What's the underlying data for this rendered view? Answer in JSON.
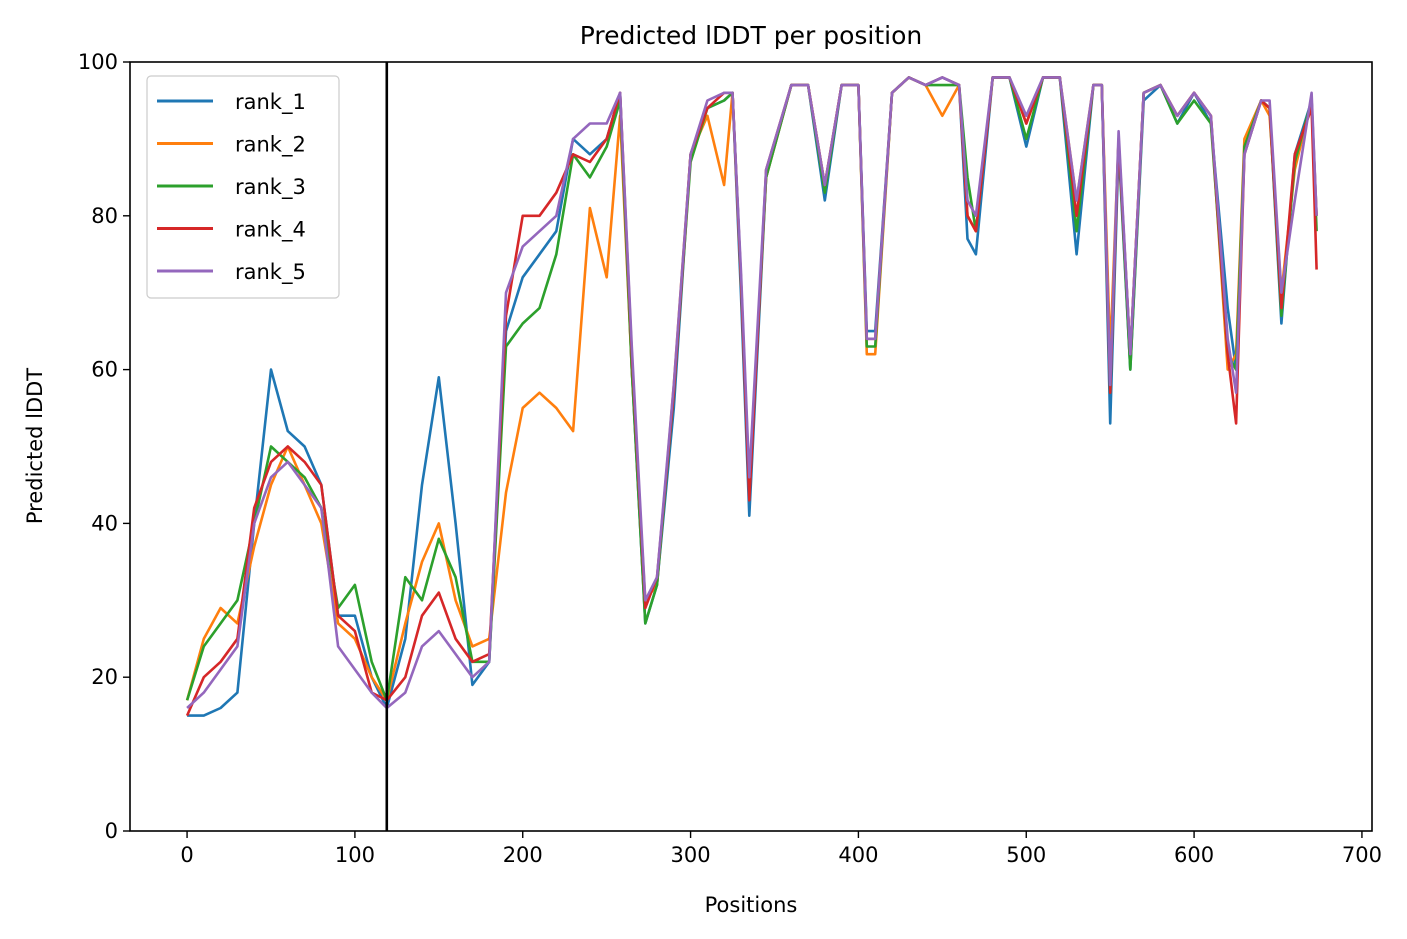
{
  "chart_data": {
    "type": "line",
    "title": "Predicted lDDT per position",
    "xlabel": "Positions",
    "ylabel": "Predicted lDDT",
    "xlim": [
      -34,
      706
    ],
    "ylim": [
      0,
      100
    ],
    "xticks": [
      0,
      100,
      200,
      300,
      400,
      500,
      600,
      700
    ],
    "yticks": [
      0,
      20,
      40,
      60,
      80,
      100
    ],
    "grid": false,
    "legend_position": "top-left",
    "vline_x": 119,
    "vline_color": "#000000",
    "x": [
      0,
      10,
      20,
      30,
      40,
      50,
      60,
      70,
      80,
      90,
      100,
      110,
      119,
      130,
      140,
      150,
      160,
      170,
      180,
      190,
      200,
      210,
      220,
      230,
      240,
      250,
      258,
      265,
      273,
      280,
      290,
      300,
      310,
      320,
      325,
      330,
      335,
      345,
      360,
      370,
      380,
      390,
      400,
      405,
      410,
      420,
      430,
      440,
      450,
      460,
      465,
      470,
      480,
      490,
      500,
      510,
      520,
      530,
      540,
      545,
      550,
      555,
      562,
      570,
      580,
      590,
      600,
      610,
      620,
      625,
      630,
      640,
      645,
      652,
      660,
      670,
      673
    ],
    "series": [
      {
        "name": "rank_1",
        "color": "#1f77b4",
        "values": [
          15,
          15,
          16,
          18,
          40,
          60,
          52,
          50,
          45,
          28,
          28,
          20,
          16,
          25,
          45,
          59,
          40,
          19,
          22,
          65,
          72,
          75,
          78,
          90,
          88,
          90,
          96,
          60,
          27,
          32,
          55,
          88,
          94,
          95,
          96,
          70,
          41,
          85,
          97,
          97,
          82,
          97,
          97,
          65,
          65,
          96,
          98,
          97,
          98,
          97,
          77,
          75,
          98,
          98,
          89,
          98,
          98,
          75,
          97,
          97,
          53,
          89,
          60,
          95,
          97,
          92,
          96,
          92,
          68,
          60,
          88,
          95,
          94,
          66,
          88,
          95,
          80
        ]
      },
      {
        "name": "rank_2",
        "color": "#ff7f0e",
        "values": [
          17,
          25,
          29,
          27,
          37,
          45,
          50,
          45,
          40,
          27,
          25,
          20,
          17,
          27,
          35,
          40,
          30,
          24,
          25,
          44,
          55,
          57,
          55,
          52,
          81,
          72,
          93,
          60,
          30,
          32,
          58,
          88,
          93,
          84,
          96,
          72,
          45,
          85,
          97,
          97,
          84,
          97,
          97,
          62,
          62,
          96,
          98,
          97,
          93,
          97,
          80,
          78,
          98,
          98,
          92,
          98,
          98,
          82,
          97,
          97,
          62,
          90,
          62,
          96,
          97,
          93,
          96,
          93,
          60,
          62,
          90,
          95,
          93,
          70,
          86,
          95,
          80
        ]
      },
      {
        "name": "rank_3",
        "color": "#2ca02c",
        "values": [
          17,
          24,
          27,
          30,
          40,
          50,
          48,
          46,
          42,
          29,
          32,
          22,
          17,
          33,
          30,
          38,
          33,
          22,
          22,
          63,
          66,
          68,
          75,
          88,
          85,
          89,
          95,
          60,
          27,
          32,
          57,
          87,
          94,
          95,
          96,
          72,
          44,
          85,
          97,
          97,
          83,
          97,
          97,
          63,
          63,
          96,
          98,
          97,
          97,
          97,
          85,
          78,
          98,
          98,
          90,
          98,
          98,
          78,
          97,
          97,
          57,
          90,
          60,
          96,
          97,
          92,
          95,
          92,
          62,
          60,
          89,
          95,
          94,
          67,
          87,
          95,
          78
        ]
      },
      {
        "name": "rank_4",
        "color": "#d62728",
        "values": [
          15,
          20,
          22,
          25,
          42,
          48,
          50,
          48,
          45,
          28,
          26,
          18,
          17,
          20,
          28,
          31,
          25,
          22,
          23,
          67,
          80,
          80,
          83,
          88,
          87,
          90,
          96,
          62,
          29,
          33,
          57,
          88,
          94,
          96,
          96,
          72,
          43,
          86,
          97,
          97,
          84,
          97,
          97,
          64,
          64,
          96,
          98,
          97,
          98,
          97,
          80,
          78,
          98,
          98,
          92,
          98,
          98,
          80,
          97,
          97,
          57,
          90,
          62,
          96,
          97,
          93,
          96,
          93,
          62,
          53,
          88,
          95,
          94,
          68,
          88,
          94,
          73
        ]
      },
      {
        "name": "rank_5",
        "color": "#9467bd",
        "values": [
          16,
          18,
          21,
          24,
          40,
          46,
          48,
          45,
          42,
          24,
          21,
          18,
          16,
          18,
          24,
          26,
          23,
          20,
          22,
          70,
          76,
          78,
          80,
          90,
          92,
          92,
          96,
          63,
          30,
          33,
          58,
          88,
          95,
          96,
          96,
          73,
          46,
          86,
          97,
          97,
          84,
          97,
          97,
          64,
          64,
          96,
          98,
          97,
          98,
          97,
          82,
          80,
          98,
          98,
          93,
          98,
          98,
          82,
          97,
          97,
          58,
          91,
          62,
          96,
          97,
          93,
          96,
          93,
          64,
          57,
          88,
          95,
          95,
          70,
          82,
          96,
          80
        ]
      }
    ]
  }
}
